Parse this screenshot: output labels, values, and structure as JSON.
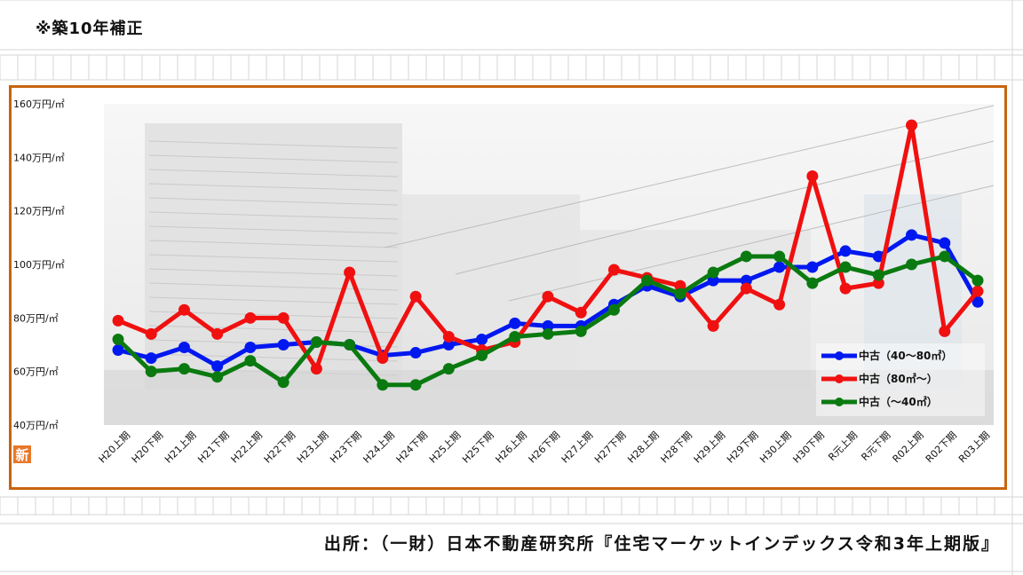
{
  "header": {
    "note": "※築10年補正"
  },
  "source": {
    "text": "出所：（一財）日本不動産研究所『住宅マーケットインデックス令和3年上期版』"
  },
  "colors": {
    "frame": "#c8640f",
    "grid": "#cfcfcf"
  },
  "badge": {
    "label": "新"
  },
  "chart_data": {
    "type": "line",
    "categories": [
      "H20上期",
      "H20下期",
      "H21上期",
      "H21下期",
      "H22上期",
      "H22下期",
      "H23上期",
      "H23下期",
      "H24上期",
      "H24下期",
      "H25上期",
      "H25下期",
      "H26上期",
      "H26下期",
      "H27上期",
      "H27下期",
      "H28上期",
      "H28下期",
      "H29上期",
      "H29下期",
      "H30上期",
      "H30下期",
      "R元上期",
      "R元下期",
      "R02上期",
      "R02下期",
      "R03上期"
    ],
    "y_ticks": [
      {
        "value": 40,
        "label": "40万円/㎡"
      },
      {
        "value": 60,
        "label": "60万円/㎡"
      },
      {
        "value": 80,
        "label": "80万円/㎡"
      },
      {
        "value": 100,
        "label": "100万円/㎡"
      },
      {
        "value": 120,
        "label": "120万円/㎡"
      },
      {
        "value": 140,
        "label": "140万円/㎡"
      },
      {
        "value": 160,
        "label": "160万円/㎡"
      }
    ],
    "ylim": [
      40,
      160
    ],
    "legend_position": "bottom-right",
    "series": [
      {
        "name": "中古（40～80㎡）",
        "color": "#0018f0",
        "values": [
          68,
          65,
          69,
          62,
          69,
          70,
          71,
          70,
          66,
          67,
          70,
          72,
          78,
          77,
          77,
          85,
          92,
          88,
          94,
          94,
          99,
          99,
          105,
          103,
          111,
          108,
          86
        ]
      },
      {
        "name": "中古（80㎡～）",
        "color": "#f01010",
        "values": [
          79,
          74,
          83,
          74,
          80,
          80,
          61,
          97,
          65,
          88,
          73,
          68,
          71,
          88,
          82,
          98,
          95,
          92,
          77,
          91,
          85,
          133,
          91,
          93,
          152,
          75,
          90
        ]
      },
      {
        "name": "中古（～40㎡）",
        "color": "#0a7a10",
        "values": [
          72,
          60,
          61,
          58,
          64,
          56,
          71,
          70,
          55,
          55,
          61,
          66,
          73,
          74,
          75,
          83,
          94,
          89,
          97,
          103,
          103,
          93,
          99,
          96,
          100,
          103,
          94
        ]
      }
    ]
  }
}
